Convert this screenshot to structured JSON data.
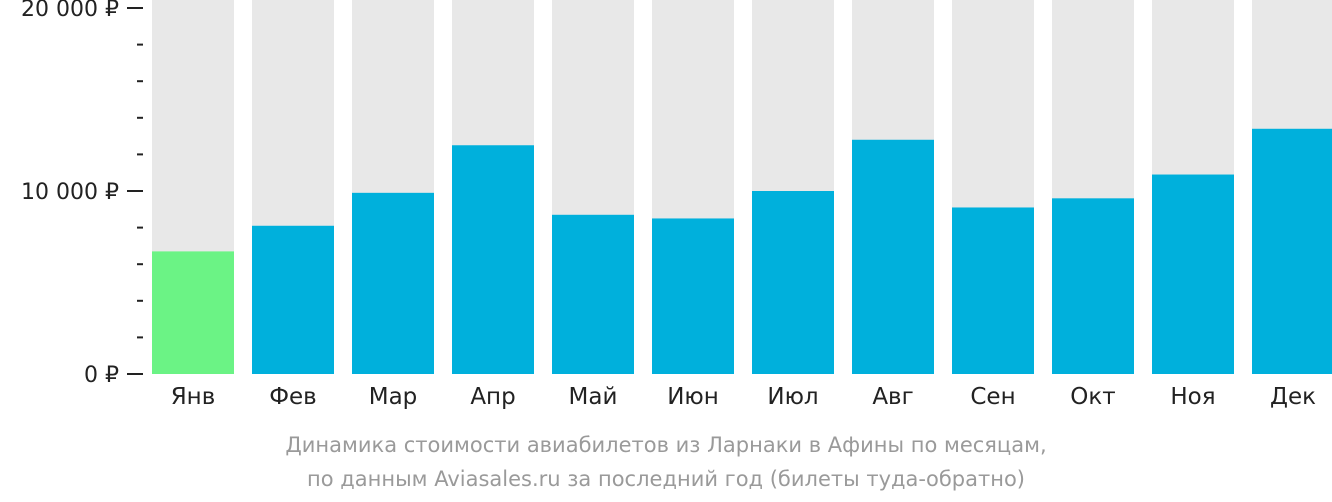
{
  "chart_data": {
    "type": "bar",
    "categories": [
      "Янв",
      "Фев",
      "Мар",
      "Апр",
      "Май",
      "Июн",
      "Июл",
      "Авг",
      "Сен",
      "Окт",
      "Ноя",
      "Дек"
    ],
    "values": [
      6700,
      8100,
      9900,
      12500,
      8700,
      8500,
      10000,
      12800,
      9100,
      9600,
      10900,
      13400
    ],
    "ylim": [
      0,
      20000
    ],
    "yticks": [
      {
        "value": 0,
        "label": "0 ₽"
      },
      {
        "value": 10000,
        "label": "10 000 ₽"
      },
      {
        "value": 20000,
        "label": "20 000 ₽"
      }
    ],
    "minor_tick_step": 2000,
    "highlight_index": 0,
    "colors": {
      "bar": "#00b0dc",
      "highlight": "#6bf385",
      "background_bar": "#e8e8e8",
      "axis": "#222222"
    },
    "caption_lines": [
      "Динамика стоимости авиабилетов из Ларнаки в Афины по месяцам,",
      "по данным Aviasales.ru за последний год (билеты туда-обратно)"
    ]
  }
}
